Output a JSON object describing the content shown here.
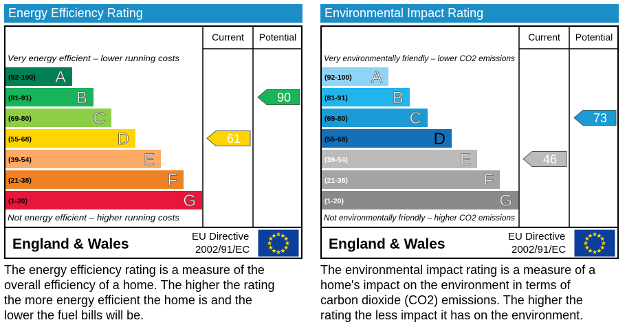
{
  "panels": [
    {
      "id": "energy",
      "title": "Energy Efficiency Rating",
      "title_color": "#1c8ec7",
      "col_current": "Current",
      "col_potential": "Potential",
      "top_note": "Very energy efficient – lower running costs",
      "bottom_note": "Not energy efficient – higher running costs",
      "region": "England & Wales",
      "directive_line1": "EU Directive",
      "directive_line2": "2002/91/EC",
      "description": [
        "The energy efficiency rating is a measure of the",
        "overall efficiency of a home.  The higher the rating",
        "the more energy efficient the home is and the",
        "lower the fuel bills will be."
      ]
    },
    {
      "id": "environmental",
      "title": "Environmental Impact Rating",
      "title_color": "#1c8ec7",
      "col_current": "Current",
      "col_potential": "Potential",
      "top_note": "Very environmentally friendly – lower CO2 emissions",
      "bottom_note": "Not environmentally friendly – higher CO2 emissions",
      "region": "England & Wales",
      "directive_line1": "EU Directive",
      "directive_line2": "2002/91/EC",
      "description": [
        "The environmental impact rating is a measure of a",
        "home's impact on the environment in terms of",
        "carbon dioxide (CO2) emissions.  The higher the",
        "rating the less impact it has on the environment."
      ]
    }
  ],
  "chart_data": [
    {
      "type": "bar",
      "title": "Energy Efficiency Rating",
      "categories": [
        "A",
        "B",
        "C",
        "D",
        "E",
        "F",
        "G"
      ],
      "ranges": [
        "(92-100)",
        "(81-91)",
        "(69-80)",
        "(55-68)",
        "(39-54)",
        "(21-38)",
        "(1-20)"
      ],
      "band_colors": [
        "#008054",
        "#19b459",
        "#8dce46",
        "#ffd500",
        "#fcaa65",
        "#ef8023",
        "#e9153b"
      ],
      "current": {
        "value": 61,
        "band": "D",
        "color": "#ffd500"
      },
      "potential": {
        "value": 90,
        "band": "B",
        "color": "#19b459"
      }
    },
    {
      "type": "bar",
      "title": "Environmental Impact Rating",
      "categories": [
        "A",
        "B",
        "C",
        "D",
        "E",
        "F",
        "G"
      ],
      "ranges": [
        "(92-100)",
        "(81-91)",
        "(69-80)",
        "(55-68)",
        "(39-54)",
        "(21-38)",
        "(1-20)"
      ],
      "band_colors": [
        "#8fd3f5",
        "#22b5eb",
        "#1b9ad6",
        "#1570b8",
        "#bbbbbb",
        "#a4a4a4",
        "#8a8a8a"
      ],
      "current": {
        "value": 46,
        "band": "E",
        "color": "#bbbbbb"
      },
      "potential": {
        "value": 73,
        "band": "C",
        "color": "#1b9ad6"
      }
    }
  ]
}
